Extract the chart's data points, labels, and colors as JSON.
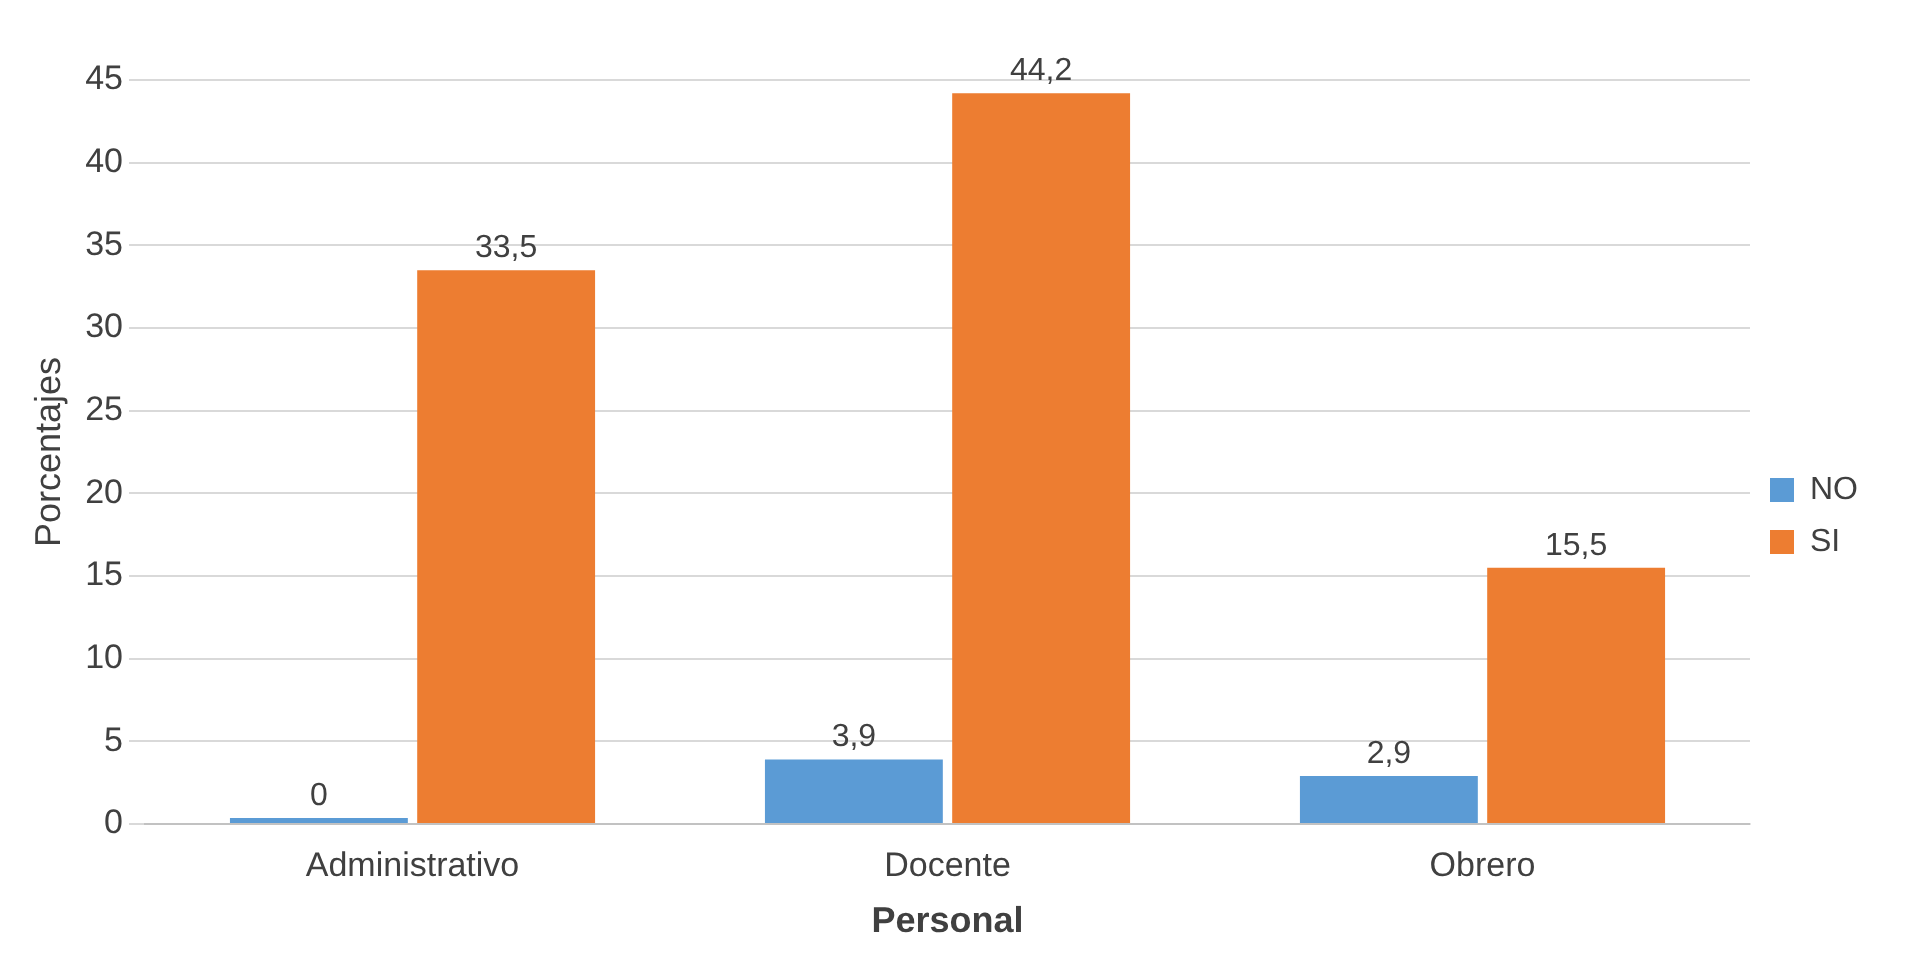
{
  "chart_data": {
    "type": "bar",
    "xlabel": "Personal",
    "ylabel": "Porcentajes",
    "categories": [
      "Administrativo",
      "Docente",
      "Obrero"
    ],
    "series": [
      {
        "name": "NO",
        "color": "#5b9bd5",
        "values": [
          0,
          3.9,
          2.9
        ],
        "value_labels": [
          "0",
          "3,9",
          "2,9"
        ]
      },
      {
        "name": "SI",
        "color": "#ed7d31",
        "values": [
          33.5,
          44.2,
          15.5
        ],
        "value_labels": [
          "33,5",
          "44,2",
          "15,5"
        ]
      }
    ],
    "ylim": [
      0,
      45
    ],
    "yticks": [
      0,
      5,
      10,
      15,
      20,
      25,
      30,
      35,
      40,
      45
    ],
    "grid": "y",
    "legend": "right"
  }
}
